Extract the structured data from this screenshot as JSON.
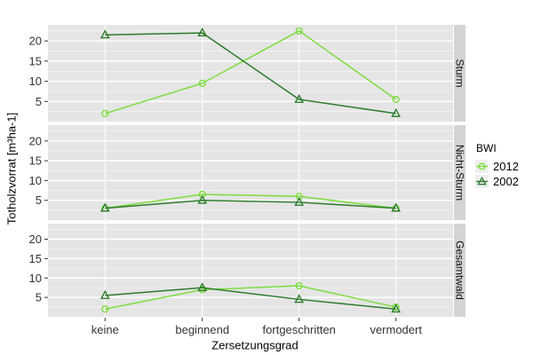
{
  "colors": {
    "series_2012": "#7ddc3f",
    "series_2002": "#2d7c2d",
    "panel_bg": "#e5e5e5",
    "strip_bg": "#d4d4d4",
    "grid": "#ffffff",
    "legend_key_bg": "#efefef",
    "axis_text": "#333333"
  },
  "legend": {
    "title": "BWI",
    "items": [
      {
        "label": "2012",
        "marker": "circle",
        "color": "#7ddc3f"
      },
      {
        "label": "2002",
        "marker": "triangle",
        "color": "#2d7c2d"
      }
    ]
  },
  "chart_data": {
    "type": "line",
    "title": "",
    "xlabel": "Zersetzungsgrad",
    "ylabel": "Totholzvorrat [m³ha-1]",
    "categories": [
      "keine",
      "beginnend",
      "fortgeschritten",
      "vermodert"
    ],
    "ylim": [
      0,
      24
    ],
    "yticks": [
      5,
      10,
      15,
      20
    ],
    "grid": true,
    "legend_title": "BWI",
    "legend_position": "right",
    "facets": [
      {
        "name": "Sturm",
        "series": [
          {
            "name": "2012",
            "values": [
              2,
              9.5,
              22.5,
              5.5
            ]
          },
          {
            "name": "2002",
            "values": [
              21.5,
              22,
              5.5,
              2
            ]
          }
        ]
      },
      {
        "name": "Nicht-Sturm",
        "series": [
          {
            "name": "2012",
            "values": [
              3,
              6.5,
              6,
              3
            ]
          },
          {
            "name": "2002",
            "values": [
              3,
              5,
              4.5,
              3
            ]
          }
        ]
      },
      {
        "name": "Gesamtwald",
        "series": [
          {
            "name": "2012",
            "values": [
              2,
              7,
              8,
              2.5
            ]
          },
          {
            "name": "2002",
            "values": [
              5.5,
              7.5,
              4.5,
              2
            ]
          }
        ]
      }
    ]
  }
}
